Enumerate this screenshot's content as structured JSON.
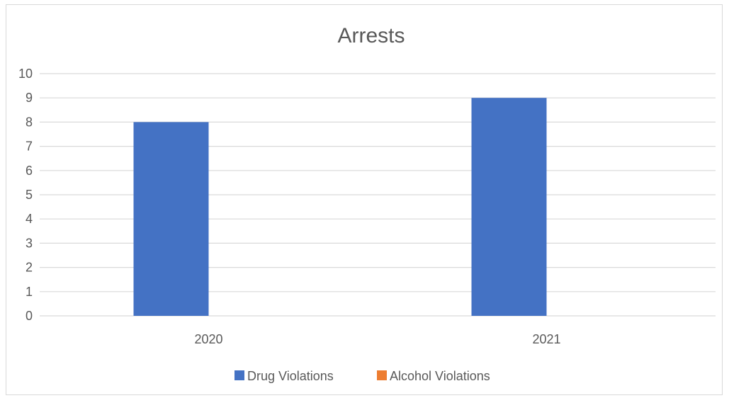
{
  "chart_data": {
    "type": "bar",
    "title": "Arrests",
    "xlabel": "",
    "ylabel": "",
    "categories": [
      "2020",
      "2021"
    ],
    "series": [
      {
        "name": "Drug Violations",
        "color": "#4472c4",
        "values": [
          8,
          9
        ]
      },
      {
        "name": "Alcohol Violations",
        "color": "#ed7d31",
        "values": [
          0,
          0
        ]
      }
    ],
    "ylim": [
      0,
      10
    ],
    "yticks": [
      "0",
      "1",
      "2",
      "3",
      "4",
      "5",
      "6",
      "7",
      "8",
      "9",
      "10"
    ],
    "grid": true,
    "legend_position": "bottom"
  }
}
